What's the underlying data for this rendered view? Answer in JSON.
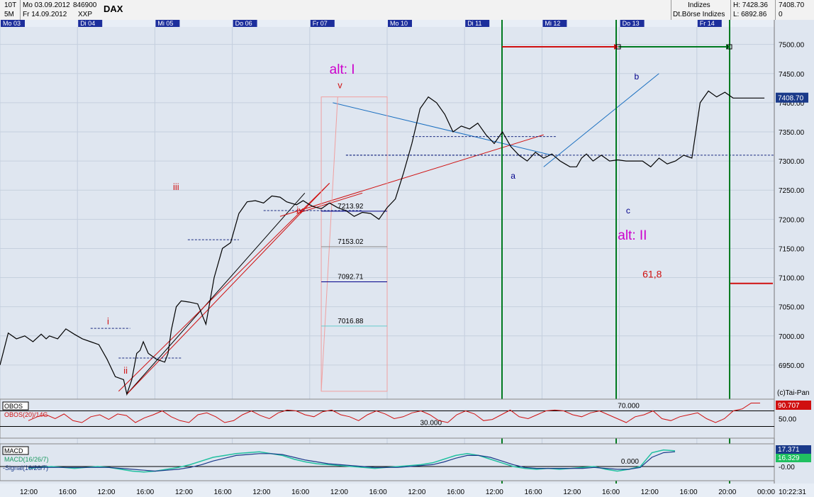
{
  "header": {
    "interval_top": "10T",
    "interval_bottom": "5M",
    "date_from": "Mo 03.09.2012",
    "date_to": "Fr 14.09.2012",
    "code": "846900",
    "exchange": "XXP",
    "symbol": "DAX",
    "category": "Indizes",
    "source": "Dt.Börse Indizes",
    "high": "H: 7428.36",
    "low": "L: 6892.86",
    "last": "7408.70",
    "change": "0"
  },
  "day_labels": [
    "Mo 03",
    "Di 04",
    "Mi 05",
    "Do 06",
    "Fr 07",
    "Mo 10",
    "Di 11",
    "Mi 12",
    "Do 13",
    "Fr 14"
  ],
  "time_labels": [
    "12:00",
    "16:00",
    "12:00",
    "16:00",
    "12:00",
    "16:00",
    "12:00",
    "16:00",
    "12:00",
    "16:00",
    "12:00",
    "16:00",
    "12:00",
    "16:00",
    "12:00",
    "16:00",
    "12:00",
    "16:00",
    "20:00",
    "00:00"
  ],
  "clock": "10:22:31",
  "copyright": "(c)Tai-Pan",
  "colors": {
    "bg": "#dfe6f0",
    "price": "#000000",
    "red": "#d01010",
    "green": "#007a20",
    "blue": "#1a6fc0",
    "magenta": "#cc00cc",
    "navy": "#00008b"
  },
  "chart_data": {
    "type": "line",
    "title": "DAX",
    "ylim": [
      6900,
      7530
    ],
    "y_ticks": [
      6950,
      7000,
      7050,
      7100,
      7150,
      7200,
      7250,
      7300,
      7350,
      7400,
      7450,
      7500
    ],
    "last_price": "7408.70",
    "grid": true,
    "series": [
      {
        "x": [
          0,
          0.5,
          1,
          1.5,
          2,
          2.5,
          2.8,
          3,
          3.5,
          4,
          4.5,
          5,
          5.5,
          6,
          6.5,
          7,
          7.5,
          7.7,
          8,
          8.3,
          8.5,
          8.7,
          9,
          9.5,
          10,
          10.2,
          10.4,
          10.7,
          11,
          11.5,
          12,
          12.5,
          13,
          13.5,
          14,
          14.5,
          15,
          15.5,
          16,
          16.5,
          17,
          17.4,
          18,
          18.4,
          18.8,
          19,
          19.5,
          20,
          20.5,
          21,
          21.5,
          22,
          22.5,
          23,
          23.5,
          24,
          24.5,
          25,
          25.5,
          26,
          26.5,
          27,
          27.5,
          28,
          28.5,
          29,
          29.5,
          30,
          30.5,
          31,
          31.5,
          32,
          32.5,
          33,
          33.5,
          34,
          34.3,
          34.6,
          35,
          35.3,
          35.6,
          36,
          36.5,
          37,
          37.5,
          38,
          38.5,
          39,
          39.5,
          40,
          40.5,
          41,
          41.5,
          42,
          42.5,
          43,
          43.5,
          44,
          44.5,
          45,
          45.5,
          46,
          46.2,
          46.4
        ],
        "y": [
          6950,
          7005,
          6995,
          7000,
          6990,
          7003,
          6995,
          7000,
          6995,
          7012,
          7003,
          6995,
          6990,
          6985,
          6960,
          6930,
          6925,
          6900,
          6925,
          6970,
          6975,
          6990,
          6970,
          6960,
          6955,
          6970,
          7010,
          7050,
          7060,
          7058,
          7055,
          7020,
          7100,
          7150,
          7160,
          7210,
          7230,
          7232,
          7228,
          7240,
          7238,
          7230,
          7225,
          7232,
          7225,
          7222,
          7218,
          7228,
          7220,
          7215,
          7205,
          7212,
          7210,
          7200,
          7220,
          7235,
          7280,
          7330,
          7390,
          7410,
          7400,
          7380,
          7350,
          7360,
          7355,
          7365,
          7345,
          7330,
          7350,
          7325,
          7310,
          7300,
          7315,
          7305,
          7312,
          7300,
          7295,
          7290,
          7290,
          7305,
          7312,
          7300,
          7310,
          7300,
          7302,
          7300,
          7300,
          7300,
          7290,
          7305,
          7295,
          7300,
          7310,
          7305,
          7400,
          7420,
          7410,
          7418,
          7408,
          7408,
          7408,
          7408,
          7408,
          7408
        ]
      }
    ],
    "levels": [
      {
        "value": 7213.92,
        "label": "7213.92"
      },
      {
        "value": 7153.02,
        "label": "7153.02"
      },
      {
        "value": 7092.71,
        "label": "7092.71"
      },
      {
        "value": 7016.88,
        "label": "7016.88"
      }
    ],
    "wave_labels": [
      {
        "text": "i",
        "x": 6.5,
        "y": 7020
      },
      {
        "text": "ii",
        "x": 7.5,
        "y": 6935
      },
      {
        "text": "iii",
        "x": 10.5,
        "y": 7250
      },
      {
        "text": "iv",
        "x": 18.0,
        "y": 7210
      },
      {
        "text": "v",
        "x": 20.5,
        "y": 7425
      },
      {
        "text": "alt: I",
        "x": 20.0,
        "y": 7450
      },
      {
        "text": "a",
        "x": 31.0,
        "y": 7270
      },
      {
        "text": "b",
        "x": 38.5,
        "y": 7440
      },
      {
        "text": "c",
        "x": 38.0,
        "y": 7210
      },
      {
        "text": "alt: II",
        "x": 37.5,
        "y": 7165
      },
      {
        "text": "61,8",
        "x": 39.0,
        "y": 7100
      }
    ]
  },
  "obos": {
    "name": "OBOS",
    "label": "OBOS(20)/14G",
    "value": "90.707",
    "level_high": "70.000",
    "level_low": "30.000",
    "axis_label": "50.00",
    "values": [
      45,
      55,
      60,
      50,
      62,
      45,
      40,
      55,
      60,
      48,
      62,
      58,
      40,
      52,
      60,
      70,
      55,
      45,
      40,
      60,
      65,
      55,
      40,
      45,
      60,
      70,
      58,
      50,
      65,
      72,
      70,
      60,
      55,
      68,
      72,
      60,
      55,
      45,
      60,
      70,
      62,
      50,
      55,
      65,
      70,
      60,
      45,
      40,
      60,
      70,
      62,
      45,
      48,
      60,
      72,
      55,
      50,
      60,
      70,
      72,
      70,
      60,
      55,
      65,
      70,
      60,
      50,
      40,
      55,
      60,
      70,
      50,
      45,
      55,
      60,
      65,
      50,
      40,
      50,
      70,
      75,
      90,
      90
    ]
  },
  "macd": {
    "name": "MACD",
    "label_macd": "MACD(16/26/7)",
    "label_signal": "-Signal(16/26/7)",
    "value_macd": "17.371",
    "value_signal": "16.329",
    "zero_label": "0.000",
    "axis_label": "-0.00",
    "macd_values": [
      -2,
      -1,
      0,
      -1,
      -2,
      -1,
      0,
      -1,
      -3,
      -5,
      -6,
      -5,
      -3,
      -1,
      2,
      6,
      10,
      12,
      14,
      15,
      16,
      14,
      12,
      8,
      5,
      3,
      2,
      1,
      0,
      -1,
      -2,
      -1,
      0,
      1,
      2,
      4,
      8,
      12,
      14,
      12,
      8,
      4,
      0,
      -2,
      -3,
      -2,
      -3,
      -2,
      -1,
      0,
      -3,
      -5,
      -3,
      0,
      15,
      18,
      17
    ],
    "signal_values": [
      -1,
      -1,
      -1,
      -1,
      -1,
      -1,
      -1,
      -1,
      -2,
      -3,
      -4,
      -5,
      -4,
      -3,
      -1,
      2,
      6,
      9,
      12,
      13,
      14,
      14,
      13,
      10,
      7,
      5,
      3,
      2,
      1,
      0,
      -1,
      -1,
      -1,
      0,
      1,
      2,
      5,
      9,
      12,
      12,
      10,
      6,
      2,
      -1,
      -2,
      -2,
      -2,
      -2,
      -2,
      -1,
      -2,
      -3,
      -3,
      -1,
      10,
      15,
      16
    ]
  }
}
